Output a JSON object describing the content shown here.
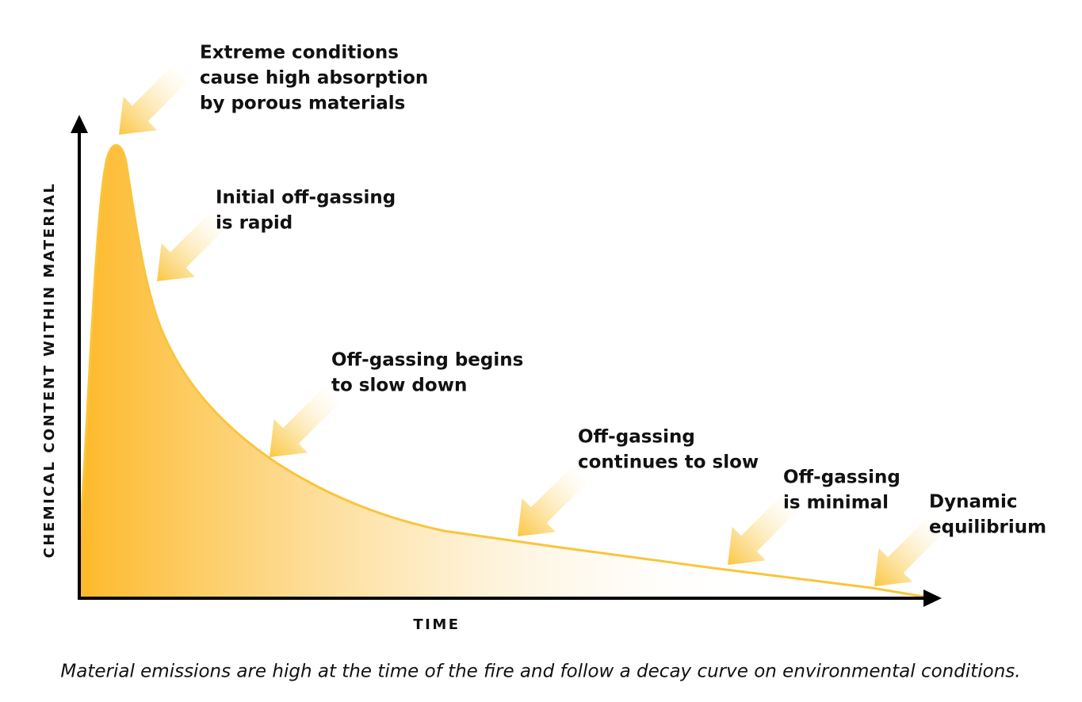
{
  "axes": {
    "y_label": "CHEMICAL CONTENT WITHIN MATERIAL",
    "x_label": "TIME"
  },
  "annotations": [
    {
      "lines": [
        "Extreme conditions",
        "cause high absorption",
        "by porous materials"
      ]
    },
    {
      "lines": [
        "Initial off-gassing",
        "is rapid"
      ]
    },
    {
      "lines": [
        "Off-gassing begins",
        "to slow down"
      ]
    },
    {
      "lines": [
        "Off-gassing",
        "continues to slow"
      ]
    },
    {
      "lines": [
        "Off-gassing",
        "is minimal"
      ]
    },
    {
      "lines": [
        "Dynamic",
        "equilibrium"
      ]
    }
  ],
  "caption": "Material emissions are high at the time of the fire and follow a decay curve on environmental conditions."
}
